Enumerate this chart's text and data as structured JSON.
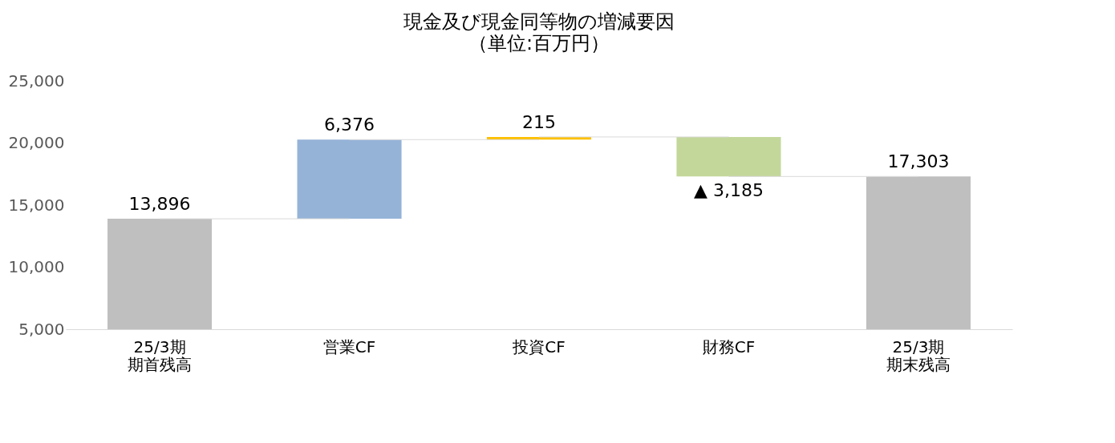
{
  "chart_data": {
    "type": "bar",
    "title": "現金及び現金同等物の増減要因",
    "subtitle": "（単位:百万円）",
    "categories": [
      "25/3期期首残高",
      "営業CF",
      "投資CF",
      "財務CF",
      "25/3期期末残高"
    ],
    "values": [
      13896,
      6376,
      215,
      -3185,
      17303
    ],
    "base": [
      null,
      13896,
      20272,
      20487,
      null
    ],
    "colors": [
      "#bfbfbf",
      "#95b3d7",
      "#ffc000",
      "#c4d79b",
      "#bfbfbf"
    ],
    "value_labels": [
      "13,896",
      "6,376",
      "215",
      "▲ 3,185",
      "17,303"
    ],
    "ylim": [
      5000,
      25000
    ],
    "yticks": [
      {
        "value": 5000,
        "label": "5,000"
      },
      {
        "value": 10000,
        "label": "10,000"
      },
      {
        "value": 15000,
        "label": "15,000"
      },
      {
        "value": 20000,
        "label": "20,000"
      },
      {
        "value": 25000,
        "label": "25,000"
      }
    ],
    "grid": false
  }
}
